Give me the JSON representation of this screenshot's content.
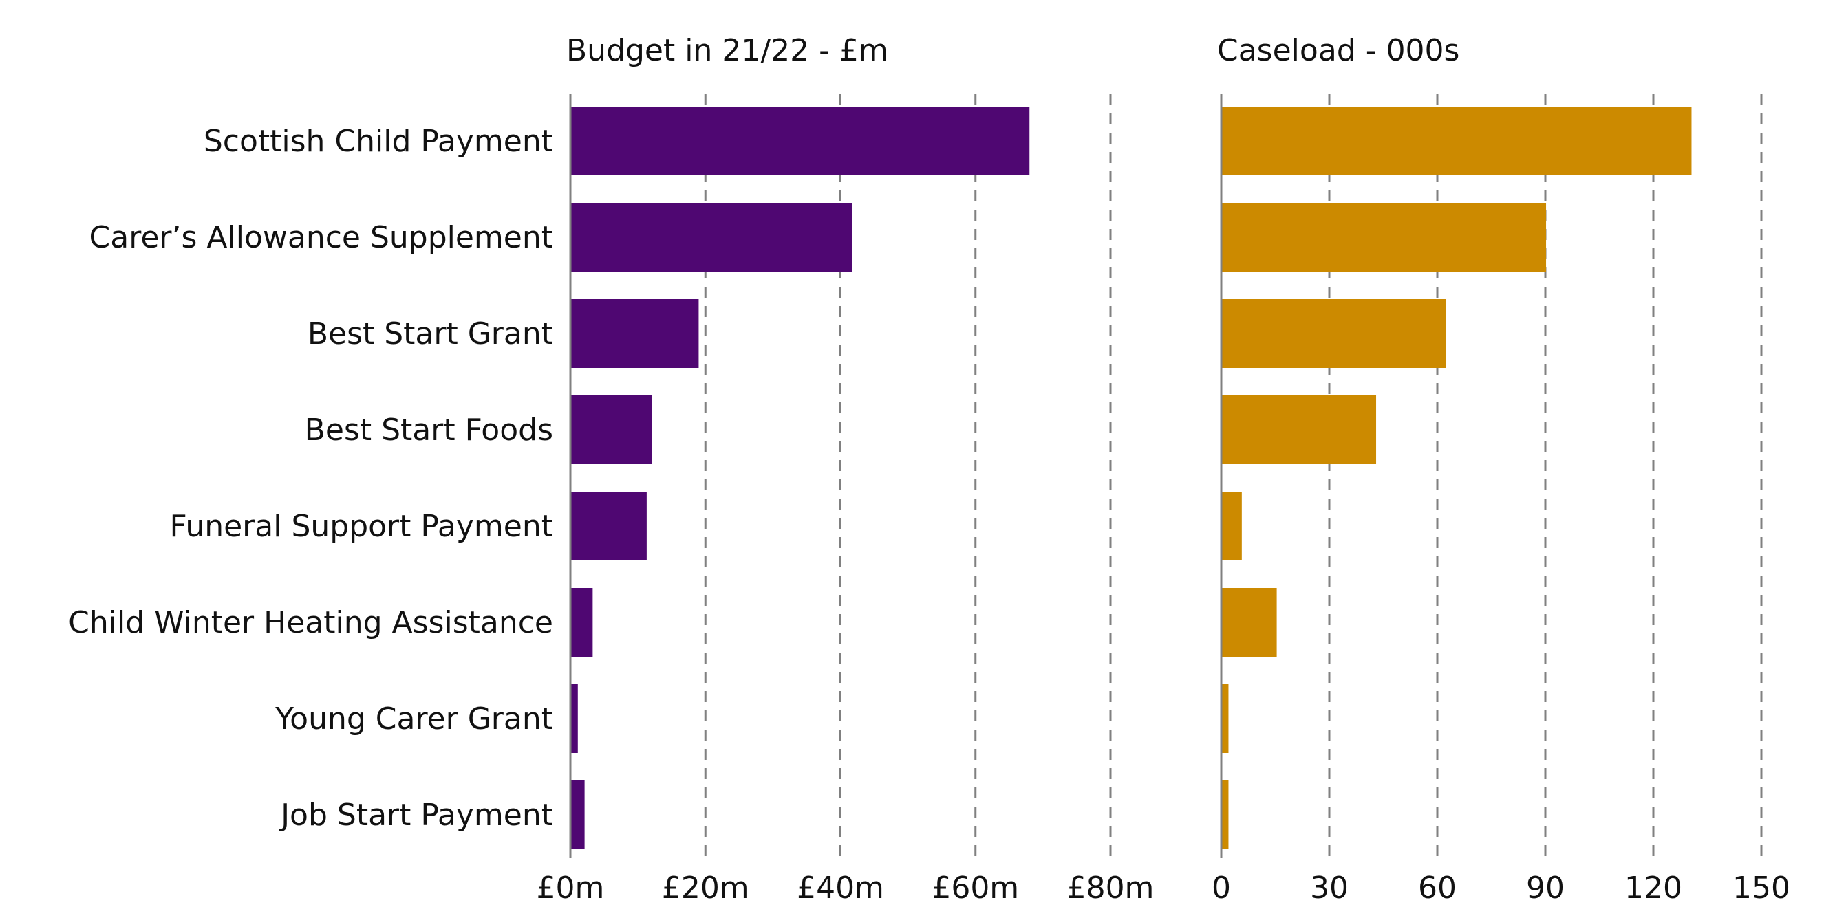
{
  "chart_data": [
    {
      "type": "bar",
      "orientation": "horizontal",
      "title": "Budget in 21/22 - £m",
      "categories": [
        "Scottish Child Payment",
        "Carer’s Allowance Supplement",
        "Best Start Grant",
        "Best Start Foods",
        "Funeral Support Payment",
        "Child Winter Heating Assistance",
        "Young Carer Grant",
        "Job Start Payment"
      ],
      "values": [
        68.0,
        41.7,
        19.0,
        12.1,
        11.3,
        3.3,
        1.1,
        2.1
      ],
      "xlim": [
        0,
        80
      ],
      "ticks": [
        0,
        20,
        40,
        60,
        80
      ],
      "tick_labels": [
        "£0m",
        "£20m",
        "£40m",
        "£60m",
        "£80m"
      ],
      "grid": "vertical dashed",
      "color": "#4f0772"
    },
    {
      "type": "bar",
      "orientation": "horizontal",
      "title": "Caseload - 000s",
      "categories": [
        "Scottish Child Payment",
        "Carer’s Allowance Supplement",
        "Best Start Grant",
        "Best Start Foods",
        "Funeral Support Payment",
        "Child Winter Heating Assistance",
        "Young Carer Grant",
        "Job Start Payment"
      ],
      "values": [
        130.6,
        90.2,
        62.4,
        43.0,
        5.7,
        15.4,
        2.0,
        2.0
      ],
      "xlim": [
        0,
        150
      ],
      "ticks": [
        0,
        30,
        60,
        90,
        120,
        150
      ],
      "tick_labels": [
        "0",
        "30",
        "60",
        "90",
        "120",
        "150"
      ],
      "grid": "vertical dashed",
      "color": "#cc8a00"
    }
  ]
}
